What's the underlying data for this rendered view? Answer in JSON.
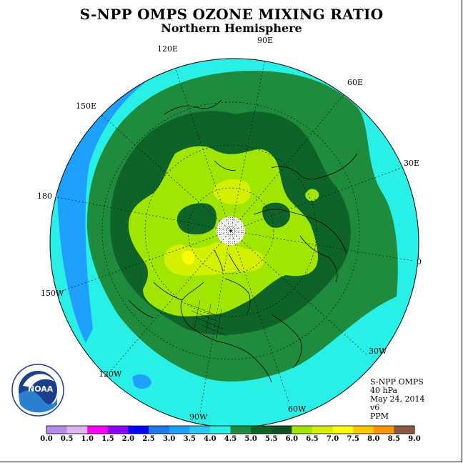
{
  "title": "S-NPP OMPS OZONE MIXING RATIO",
  "subtitle": "Northern Hemisphere",
  "longitude_labels": [
    "90E",
    "60E",
    "30E",
    "0",
    "30W",
    "60W",
    "90W",
    "120W",
    "150W",
    "180",
    "150E",
    "120E"
  ],
  "info": {
    "instrument": "S-NPP OMPS",
    "level": "40 hPa",
    "date": "May 24, 2014",
    "version": "v6",
    "units": "PPM"
  },
  "logo": {
    "text": "NOAA",
    "ring_text": "NATIONAL OCEANIC AND ATMOSPHERIC ADMINISTRATION - U.S. DEPARTMENT OF COMMERCE"
  },
  "colorbar": {
    "ticks": [
      "0.0",
      "0.5",
      "1.0",
      "1.5",
      "2.0",
      "2.5",
      "3.0",
      "3.5",
      "4.0",
      "4.5",
      "5.0",
      "5.5",
      "6.0",
      "6.5",
      "7.0",
      "7.5",
      "8.0",
      "8.5",
      "9.0"
    ],
    "colors": [
      "#b68cf0",
      "#dcb4f0",
      "#ff00ff",
      "#8c00ff",
      "#0000ff",
      "#1e78f0",
      "#1ea0ff",
      "#28c8f0",
      "#28f0e6",
      "#1e8c3c",
      "#0e6428",
      "#0f501e",
      "#a0e600",
      "#d2f000",
      "#ffff00",
      "#ffc800",
      "#ff9600",
      "#ff5000",
      "#ff0000",
      "#8c5a3c"
    ]
  },
  "map_colors": {
    "level_3_0": "#1ea0ff",
    "level_3_5": "#28f0e6",
    "level_4_0": "#1e8c3c",
    "level_4_5": "#0e6428",
    "level_5_0": "#a0e600",
    "level_5_5": "#d2f000",
    "level_6_0": "#ffff00",
    "no_data": "#ffffff"
  }
}
